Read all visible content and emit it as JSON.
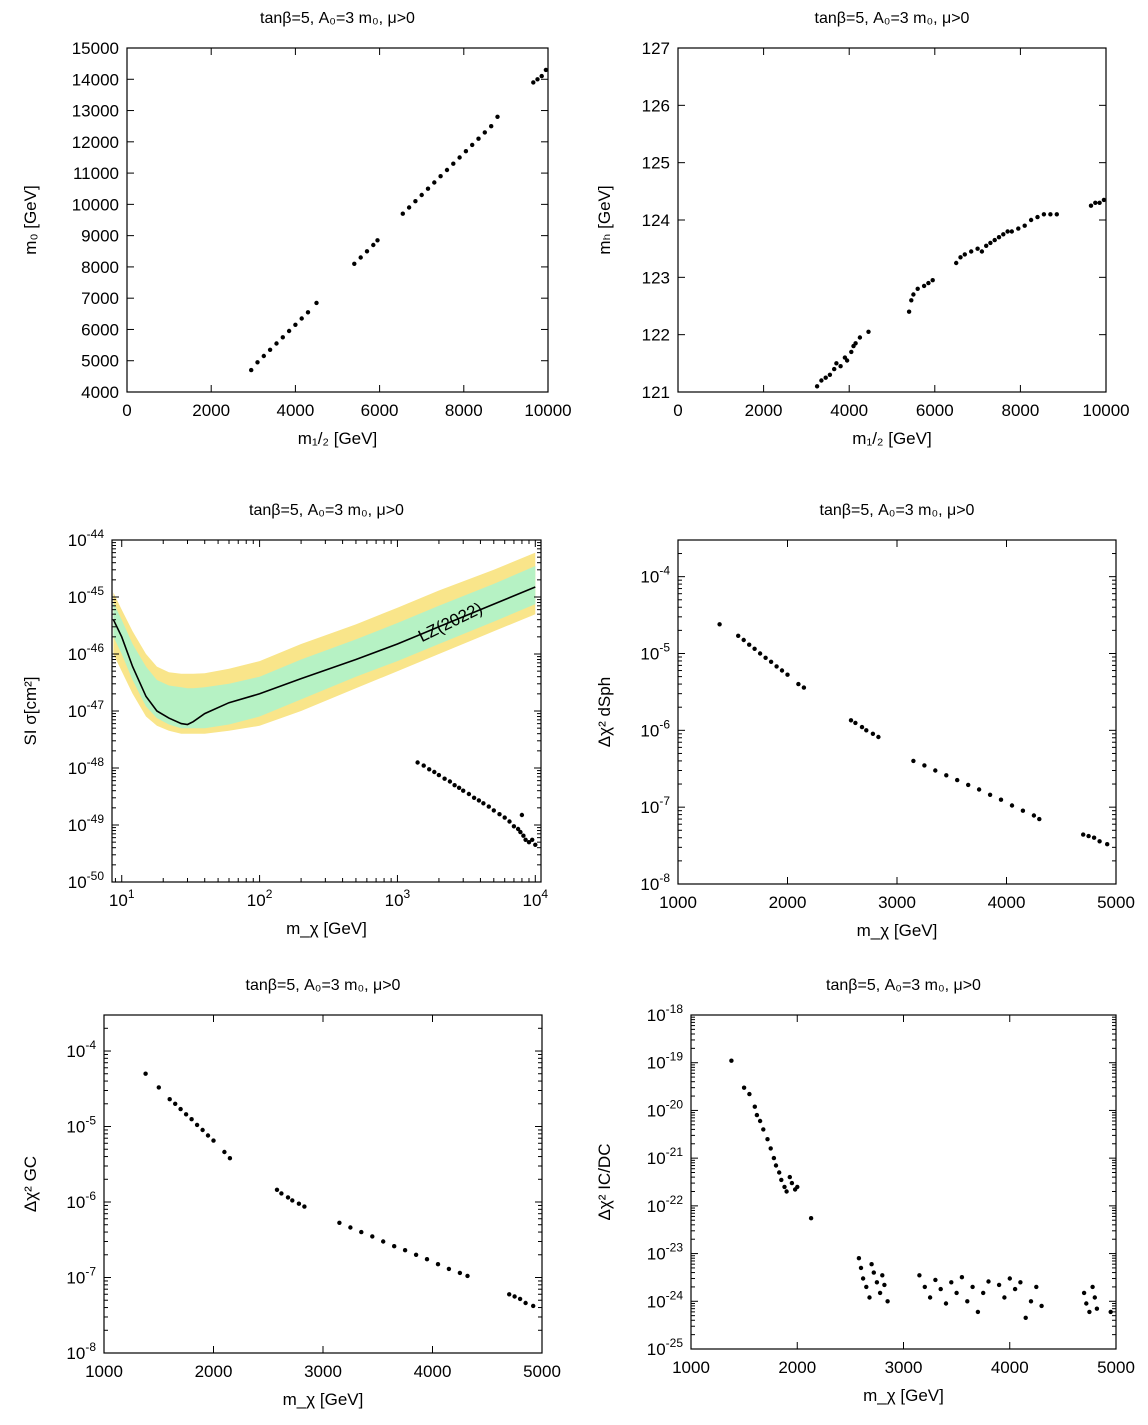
{
  "chart_data": [
    {
      "id": "p1",
      "type": "scatter",
      "title": "tanβ=5, A₀=3 m₀, μ>0",
      "xlabel": "m₁/₂ [GeV]",
      "ylabel": "m₀ [GeV]",
      "xscale": "linear",
      "yscale": "linear",
      "xlim": [
        0,
        10000
      ],
      "ylim": [
        4000,
        15000
      ],
      "xticks": [
        0,
        2000,
        4000,
        6000,
        8000,
        10000
      ],
      "yticks": [
        4000,
        5000,
        6000,
        7000,
        8000,
        9000,
        10000,
        11000,
        12000,
        13000,
        14000,
        15000
      ],
      "x": [
        2950,
        3100,
        3250,
        3400,
        3550,
        3700,
        3850,
        4000,
        4150,
        4300,
        4500,
        5400,
        5550,
        5700,
        5850,
        5950,
        6550,
        6700,
        6850,
        7000,
        7150,
        7300,
        7450,
        7600,
        7750,
        7900,
        8050,
        8200,
        8350,
        8500,
        8650,
        8800,
        9650,
        9750,
        9850,
        9950
      ],
      "y": [
        4700,
        4950,
        5150,
        5350,
        5550,
        5750,
        5950,
        6150,
        6350,
        6550,
        6850,
        8100,
        8300,
        8500,
        8700,
        8850,
        9700,
        9900,
        10100,
        10300,
        10500,
        10700,
        10900,
        11100,
        11300,
        11500,
        11700,
        11900,
        12100,
        12300,
        12500,
        12800,
        13900,
        14000,
        14100,
        14300
      ]
    },
    {
      "id": "p2",
      "type": "scatter",
      "title": "tanβ=5, A₀=3 m₀, μ>0",
      "xlabel": "m₁/₂ [GeV]",
      "ylabel": "mₕ [GeV]",
      "xscale": "linear",
      "yscale": "linear",
      "xlim": [
        0,
        10000
      ],
      "ylim": [
        121,
        127
      ],
      "xticks": [
        0,
        2000,
        4000,
        6000,
        8000,
        10000
      ],
      "yticks": [
        121,
        122,
        123,
        124,
        125,
        126,
        127
      ],
      "x": [
        3250,
        3350,
        3450,
        3550,
        3650,
        3700,
        3800,
        3900,
        3950,
        4050,
        4100,
        4150,
        4250,
        4450,
        5400,
        5450,
        5500,
        5600,
        5750,
        5850,
        5950,
        6500,
        6600,
        6700,
        6850,
        7000,
        7100,
        7200,
        7300,
        7400,
        7500,
        7600,
        7700,
        7800,
        7950,
        8100,
        8250,
        8400,
        8550,
        8700,
        8850,
        9650,
        9750,
        9850,
        9950
      ],
      "y": [
        121.1,
        121.2,
        121.25,
        121.3,
        121.4,
        121.5,
        121.45,
        121.6,
        121.55,
        121.7,
        121.8,
        121.85,
        121.95,
        122.05,
        122.4,
        122.6,
        122.7,
        122.8,
        122.85,
        122.9,
        122.95,
        123.25,
        123.35,
        123.4,
        123.45,
        123.5,
        123.45,
        123.55,
        123.6,
        123.65,
        123.7,
        123.75,
        123.8,
        123.8,
        123.85,
        123.9,
        124.0,
        124.05,
        124.1,
        124.1,
        124.1,
        124.25,
        124.3,
        124.3,
        124.35
      ]
    },
    {
      "id": "p3",
      "type": "scatter",
      "title": "tanβ=5, A₀=3 m₀, μ>0",
      "xlabel": "m_χ [GeV]",
      "ylabel": "SI σ[cm²]",
      "xscale": "log",
      "yscale": "log",
      "xlim": [
        8.5,
        11000
      ],
      "ylim": [
        1e-50,
        1e-44
      ],
      "xticks": [
        10,
        100,
        1000,
        10000
      ],
      "xticklabels": [
        [
          "10",
          "1"
        ],
        [
          "10",
          "2"
        ],
        [
          "10",
          "3"
        ],
        [
          "10",
          "4"
        ]
      ],
      "yticks": [
        1e-50,
        1e-49,
        1e-48,
        1e-47,
        1e-46,
        1e-45,
        1e-44
      ],
      "yticklabels": [
        [
          "10",
          "-50"
        ],
        [
          "10",
          "-49"
        ],
        [
          "10",
          "-48"
        ],
        [
          "10",
          "-47"
        ],
        [
          "10",
          "-46"
        ],
        [
          "10",
          "-45"
        ],
        [
          "10",
          "-44"
        ]
      ],
      "x": [
        1400,
        1550,
        1700,
        1850,
        2000,
        2200,
        2400,
        2600,
        2800,
        3000,
        3300,
        3600,
        3900,
        4200,
        4600,
        5000,
        5500,
        6000,
        6500,
        7000,
        7500,
        7800,
        8000,
        8200,
        8500,
        9000,
        9500,
        10000
      ],
      "y": [
        1.25e-48,
        1.1e-48,
        9.5e-49,
        8.5e-49,
        7.5e-49,
        6.5e-49,
        5.8e-49,
        5e-49,
        4.5e-49,
        4e-49,
        3.5e-49,
        3e-49,
        2.7e-49,
        2.4e-49,
        2.1e-49,
        1.8e-49,
        1.55e-49,
        1.35e-49,
        1.15e-49,
        9.5e-50,
        8.5e-50,
        7.5e-50,
        1.5e-49,
        6.5e-50,
        5.5e-50,
        5e-50,
        5.5e-50,
        4.5e-50
      ],
      "limit": {
        "label": "LZ(2022)",
        "x": [
          8.7,
          10,
          12,
          15,
          18,
          22,
          27,
          30,
          33,
          40,
          60,
          100,
          200,
          500,
          1000,
          2000,
          5000,
          10000
        ],
        "median": [
          4e-46,
          2e-46,
          6e-47,
          1.8e-47,
          1e-47,
          7.5e-48,
          6e-48,
          5.8e-48,
          6.5e-48,
          9e-48,
          1.4e-47,
          2e-47,
          3.7e-47,
          8e-47,
          1.5e-46,
          3e-46,
          7.5e-46,
          1.5e-45
        ],
        "band1_lo": [
          2e-46,
          1e-46,
          3.5e-47,
          1.2e-47,
          7.5e-48,
          5.8e-48,
          5e-48,
          5e-48,
          5e-48,
          5e-48,
          5.8e-48,
          8e-48,
          1.6e-47,
          4e-47,
          7.5e-47,
          1.5e-46,
          3.7e-46,
          7.5e-46
        ],
        "band1_hi": [
          8e-46,
          4e-46,
          1.5e-46,
          6e-47,
          3.5e-47,
          2.8e-47,
          2.6e-47,
          2.5e-47,
          2.5e-47,
          2.6e-47,
          3e-47,
          4e-47,
          8e-47,
          1.8e-46,
          3.5e-46,
          7e-46,
          1.7e-45,
          3.5e-45
        ],
        "band2_lo": [
          1e-46,
          5e-47,
          2e-47,
          8e-48,
          5.5e-48,
          4.5e-48,
          4e-48,
          4e-48,
          4e-48,
          4e-48,
          4.5e-48,
          5.5e-48,
          1e-47,
          2.5e-47,
          5e-47,
          1e-46,
          2.5e-46,
          5e-46
        ],
        "band2_hi": [
          1.2e-45,
          6e-46,
          2.5e-46,
          1e-46,
          6e-47,
          4.8e-47,
          4.5e-47,
          4.5e-47,
          4.5e-47,
          4.6e-47,
          5.5e-47,
          7.5e-47,
          1.5e-46,
          3.3e-46,
          6.5e-46,
          1.3e-45,
          3e-45,
          6e-45
        ]
      }
    },
    {
      "id": "p4",
      "type": "scatter",
      "title": "tanβ=5, A₀=3 m₀, μ>0",
      "xlabel": "m_χ [GeV]",
      "ylabel": "Δχ² dSph",
      "xscale": "linear",
      "yscale": "log",
      "xlim": [
        1000,
        5000
      ],
      "ylim": [
        1e-08,
        0.0003
      ],
      "xticks": [
        1000,
        2000,
        3000,
        4000,
        5000
      ],
      "yticks": [
        1e-08,
        1e-07,
        1e-06,
        1e-05,
        0.0001
      ],
      "yticklabels": [
        [
          "10",
          "-8"
        ],
        [
          "10",
          "-7"
        ],
        [
          "10",
          "-6"
        ],
        [
          "10",
          "-5"
        ],
        [
          "10",
          "-4"
        ]
      ],
      "x": [
        1380,
        1550,
        1600,
        1650,
        1700,
        1750,
        1800,
        1850,
        1900,
        1950,
        2000,
        2100,
        2150,
        2580,
        2620,
        2680,
        2720,
        2780,
        2830,
        3150,
        3250,
        3350,
        3450,
        3550,
        3650,
        3750,
        3850,
        3950,
        4050,
        4150,
        4250,
        4300,
        4700,
        4750,
        4800,
        4850,
        4920
      ],
      "y": [
        2.4e-05,
        1.7e-05,
        1.5e-05,
        1.3e-05,
        1.15e-05,
        1e-05,
        8.8e-06,
        7.8e-06,
        6.8e-06,
        6e-06,
        5.3e-06,
        4e-06,
        3.6e-06,
        1.35e-06,
        1.25e-06,
        1.1e-06,
        1e-06,
        9e-07,
        8.2e-07,
        4e-07,
        3.5e-07,
        3e-07,
        2.6e-07,
        2.25e-07,
        1.95e-07,
        1.7e-07,
        1.45e-07,
        1.25e-07,
        1.05e-07,
        9e-08,
        7.8e-08,
        7e-08,
        4.4e-08,
        4.2e-08,
        4e-08,
        3.6e-08,
        3.3e-08
      ]
    },
    {
      "id": "p5",
      "type": "scatter",
      "title": "tanβ=5, A₀=3 m₀, μ>0",
      "xlabel": "m_χ [GeV]",
      "ylabel": "Δχ² GC",
      "xscale": "linear",
      "yscale": "log",
      "xlim": [
        1000,
        5000
      ],
      "ylim": [
        1e-08,
        0.0003
      ],
      "xticks": [
        1000,
        2000,
        3000,
        4000,
        5000
      ],
      "yticks": [
        1e-08,
        1e-07,
        1e-06,
        1e-05,
        0.0001
      ],
      "yticklabels": [
        [
          "10",
          "-8"
        ],
        [
          "10",
          "-7"
        ],
        [
          "10",
          "-6"
        ],
        [
          "10",
          "-5"
        ],
        [
          "10",
          "-4"
        ]
      ],
      "x": [
        1380,
        1500,
        1600,
        1650,
        1700,
        1750,
        1800,
        1850,
        1900,
        1950,
        2000,
        2100,
        2150,
        2580,
        2620,
        2680,
        2720,
        2780,
        2830,
        3150,
        3250,
        3350,
        3450,
        3550,
        3650,
        3750,
        3850,
        3950,
        4050,
        4150,
        4250,
        4320,
        4700,
        4750,
        4800,
        4850,
        4920
      ],
      "y": [
        5e-05,
        3.3e-05,
        2.3e-05,
        2e-05,
        1.7e-05,
        1.45e-05,
        1.25e-05,
        1.05e-05,
        9e-06,
        7.6e-06,
        6.5e-06,
        4.6e-06,
        3.8e-06,
        1.45e-06,
        1.3e-06,
        1.15e-06,
        1.05e-06,
        9.5e-07,
        8.7e-07,
        5.3e-07,
        4.6e-07,
        4e-07,
        3.5e-07,
        3e-07,
        2.6e-07,
        2.3e-07,
        2e-07,
        1.75e-07,
        1.5e-07,
        1.3e-07,
        1.15e-07,
        1.05e-07,
        6e-08,
        5.6e-08,
        5.2e-08,
        4.6e-08,
        4.2e-08
      ]
    },
    {
      "id": "p6",
      "type": "scatter",
      "title": "tanβ=5, A₀=3 m₀, μ>0",
      "xlabel": "m_χ [GeV]",
      "ylabel": "Δχ² IC/DC",
      "xscale": "linear",
      "yscale": "log",
      "xlim": [
        1000,
        5000
      ],
      "ylim": [
        1e-25,
        1e-18
      ],
      "xticks": [
        1000,
        2000,
        3000,
        4000,
        5000
      ],
      "yticks": [
        1e-25,
        1e-24,
        1e-23,
        1e-22,
        1e-21,
        1e-20,
        1e-19,
        1e-18
      ],
      "yticklabels": [
        [
          "10",
          "-25"
        ],
        [
          "10",
          "-24"
        ],
        [
          "10",
          "-23"
        ],
        [
          "10",
          "-22"
        ],
        [
          "10",
          "-21"
        ],
        [
          "10",
          "-20"
        ],
        [
          "10",
          "-19"
        ],
        [
          "10",
          "-18"
        ]
      ],
      "x": [
        1380,
        1500,
        1550,
        1600,
        1620,
        1650,
        1680,
        1720,
        1750,
        1780,
        1800,
        1830,
        1850,
        1880,
        1900,
        1930,
        1950,
        1980,
        2000,
        2130,
        2580,
        2600,
        2620,
        2650,
        2680,
        2700,
        2720,
        2750,
        2780,
        2800,
        2820,
        2850,
        3150,
        3200,
        3250,
        3300,
        3350,
        3400,
        3450,
        3500,
        3550,
        3600,
        3650,
        3700,
        3750,
        3800,
        3900,
        3950,
        4000,
        4050,
        4100,
        4150,
        4200,
        4250,
        4300,
        4700,
        4720,
        4750,
        4780,
        4800,
        4820,
        4950
      ],
      "y": [
        1.1e-19,
        3e-20,
        2.2e-20,
        1.2e-20,
        8e-21,
        6e-21,
        4e-21,
        2.5e-21,
        1.6e-21,
        1e-21,
        7e-22,
        5e-22,
        3.5e-22,
        2.5e-22,
        2e-22,
        4e-22,
        3e-22,
        2.2e-22,
        2.5e-22,
        5.5e-23,
        8e-24,
        5e-24,
        3e-24,
        2e-24,
        1.2e-24,
        6e-24,
        4e-24,
        2.5e-24,
        1.5e-24,
        3.5e-24,
        2.2e-24,
        1e-24,
        3.5e-24,
        2e-24,
        1.2e-24,
        2.8e-24,
        1.8e-24,
        9e-25,
        2.5e-24,
        1.5e-24,
        3.2e-24,
        1e-24,
        2e-24,
        6e-25,
        1.5e-24,
        2.6e-24,
        2.2e-24,
        1.2e-24,
        3e-24,
        1.8e-24,
        2.5e-24,
        4.5e-25,
        1e-24,
        2e-24,
        8e-25,
        1.5e-24,
        9e-25,
        6e-25,
        2e-24,
        1.2e-24,
        7e-25,
        6e-25
      ]
    }
  ]
}
